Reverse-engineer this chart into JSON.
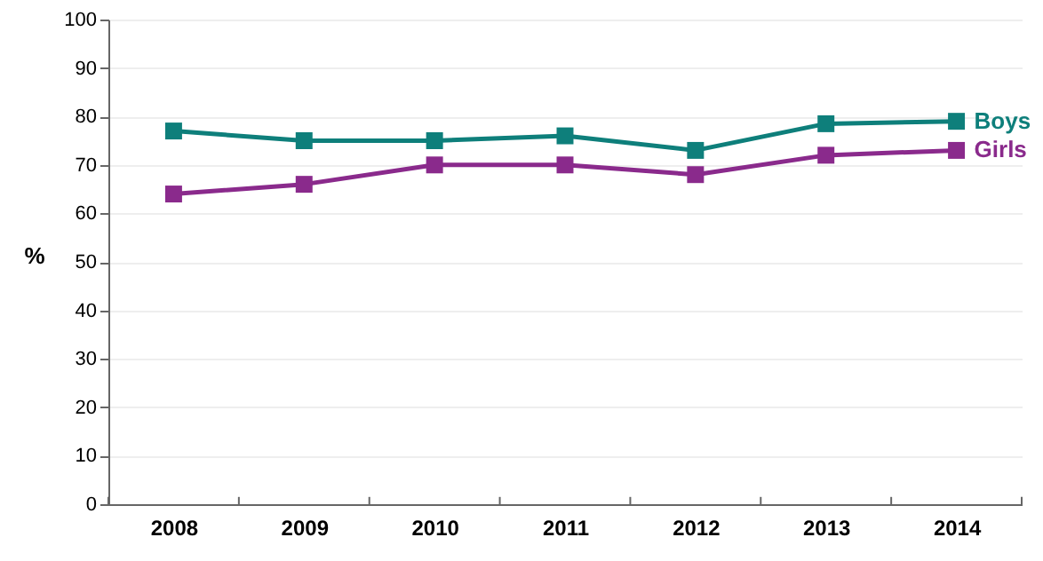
{
  "chart_data": {
    "type": "line",
    "ylabel": "%",
    "categories": [
      "2008",
      "2009",
      "2010",
      "2011",
      "2012",
      "2013",
      "2014"
    ],
    "series": [
      {
        "name": "Boys",
        "color": "#0e7f7b",
        "values": [
          77,
          75,
          75,
          76,
          73,
          78.5,
          79
        ]
      },
      {
        "name": "Girls",
        "color": "#8a2a8c",
        "values": [
          64,
          66,
          70,
          70,
          68,
          72,
          73
        ]
      }
    ],
    "ylim": [
      0,
      100
    ],
    "yticks": [
      0,
      10,
      20,
      30,
      40,
      50,
      60,
      70,
      80,
      90,
      100
    ],
    "grid": "y",
    "marker": "square",
    "legend": false,
    "line_style": "solid"
  }
}
